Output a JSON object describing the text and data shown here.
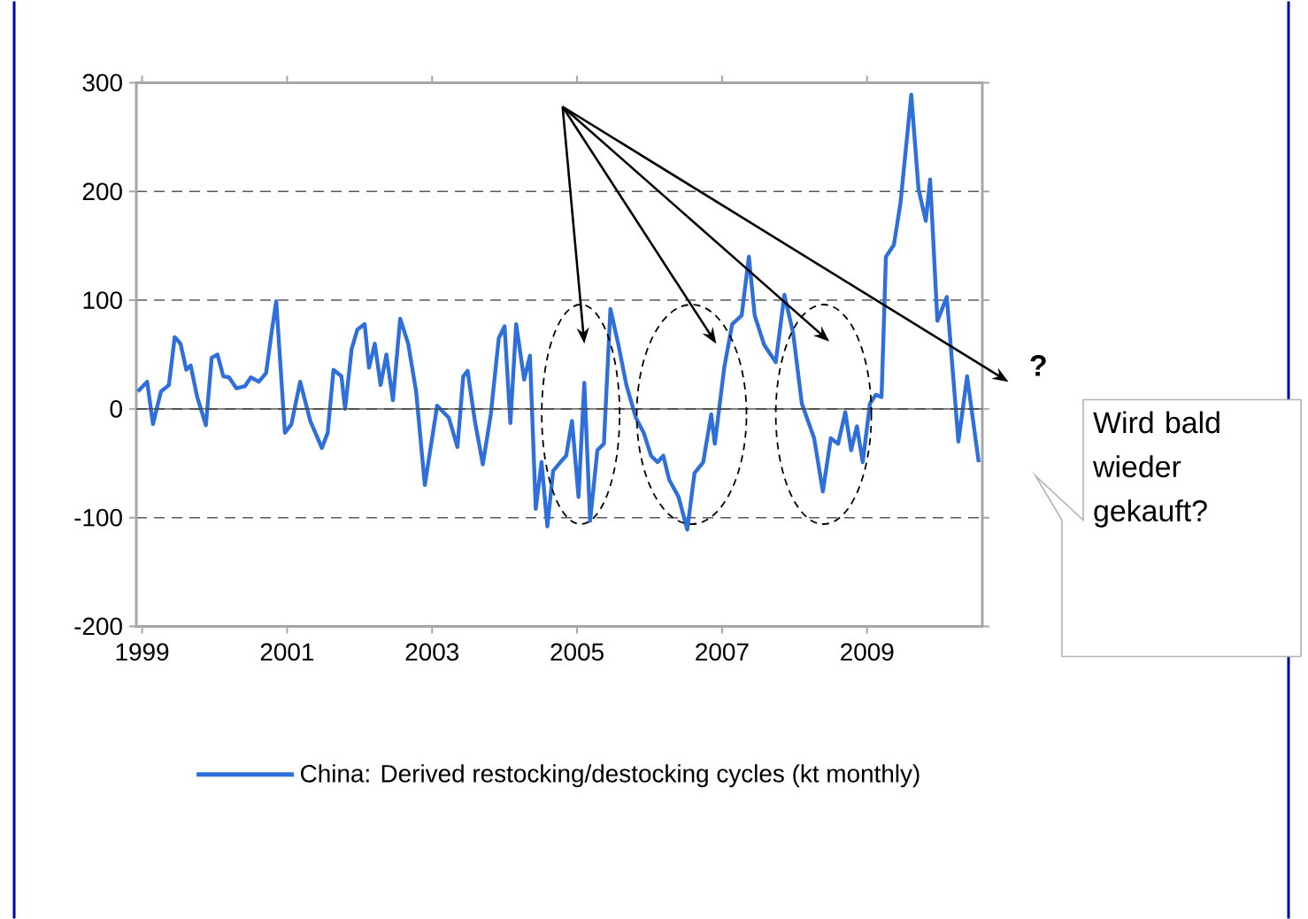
{
  "chart_data": {
    "type": "line",
    "xlim": [
      1998.92,
      2010.59
    ],
    "ylim": [
      -200,
      300
    ],
    "xticks": [
      1999,
      2001,
      2003,
      2005,
      2007,
      2009
    ],
    "yticks": [
      -200,
      -100,
      0,
      100,
      200,
      300
    ],
    "grid": "y",
    "legend": "bottom",
    "marker": "none",
    "line_style": "solid",
    "ref_lines": [
      {
        "axis": "y",
        "value": 0,
        "color": "#404040",
        "line_style": "solid"
      }
    ],
    "annotations": [
      "?",
      "Wird bald wieder gekauft?"
    ],
    "series": [
      {
        "name": "China: Derived restocking/destocking cycles (kt monthly)",
        "color": "#2e6fdb",
        "x": [
          1998.94,
          1999.07,
          1999.15,
          1999.26,
          1999.37,
          1999.45,
          1999.53,
          1999.61,
          1999.67,
          1999.76,
          1999.88,
          1999.96,
          2000.04,
          2000.12,
          2000.2,
          2000.3,
          2000.42,
          2000.5,
          2000.61,
          2000.71,
          2000.79,
          2000.85,
          2000.97,
          2001.06,
          2001.18,
          2001.32,
          2001.48,
          2001.56,
          2001.64,
          2001.75,
          2001.8,
          2001.89,
          2001.97,
          2002.07,
          2002.13,
          2002.21,
          2002.29,
          2002.37,
          2002.46,
          2002.56,
          2002.67,
          2002.78,
          2002.9,
          2003.07,
          2003.23,
          2003.35,
          2003.43,
          2003.49,
          2003.59,
          2003.7,
          2003.81,
          2003.92,
          2004.0,
          2004.08,
          2004.16,
          2004.27,
          2004.35,
          2004.43,
          2004.51,
          2004.59,
          2004.67,
          2004.77,
          2004.85,
          2004.93,
          2005.02,
          2005.1,
          2005.18,
          2005.28,
          2005.37,
          2005.46,
          2005.57,
          2005.68,
          2005.81,
          2005.92,
          2006.02,
          2006.11,
          2006.19,
          2006.27,
          2006.4,
          2006.52,
          2006.62,
          2006.74,
          2006.85,
          2006.9,
          2007.03,
          2007.14,
          2007.27,
          2007.37,
          2007.45,
          2007.58,
          2007.74,
          2007.86,
          2007.98,
          2008.1,
          2008.27,
          2008.39,
          2008.5,
          2008.6,
          2008.7,
          2008.78,
          2008.86,
          2008.94,
          2009.04,
          2009.12,
          2009.2,
          2009.26,
          2009.37,
          2009.46,
          2009.61,
          2009.71,
          2009.81,
          2009.87,
          2009.97,
          2010.1,
          2010.26,
          2010.38,
          2010.54
        ],
        "values": [
          16,
          25,
          -14,
          16,
          22,
          66,
          60,
          36,
          40,
          11,
          -15,
          47,
          50,
          30,
          29,
          19,
          21,
          29,
          25,
          33,
          72,
          99,
          -22,
          -14,
          25,
          -11,
          -36,
          -22,
          36,
          30,
          0,
          55,
          73,
          78,
          38,
          60,
          22,
          50,
          8,
          83,
          60,
          16,
          -70,
          3,
          -8,
          -35,
          30,
          35,
          -11,
          -51,
          -5,
          65,
          76,
          -13,
          78,
          27,
          49,
          -92,
          -49,
          -108,
          -57,
          -49,
          -43,
          -11,
          -81,
          24,
          -103,
          -38,
          -32,
          92,
          59,
          22,
          -8,
          -22,
          -43,
          -49,
          -43,
          -65,
          -81,
          -111,
          -59,
          -49,
          -5,
          -32,
          38,
          78,
          86,
          140,
          86,
          59,
          43,
          105,
          70,
          5,
          -27,
          -76,
          -27,
          -32,
          -3,
          -38,
          -16,
          -49,
          5,
          13,
          11,
          140,
          151,
          189,
          289,
          202,
          173,
          211,
          81,
          103,
          -30,
          30,
          -49
        ]
      }
    ]
  }
}
